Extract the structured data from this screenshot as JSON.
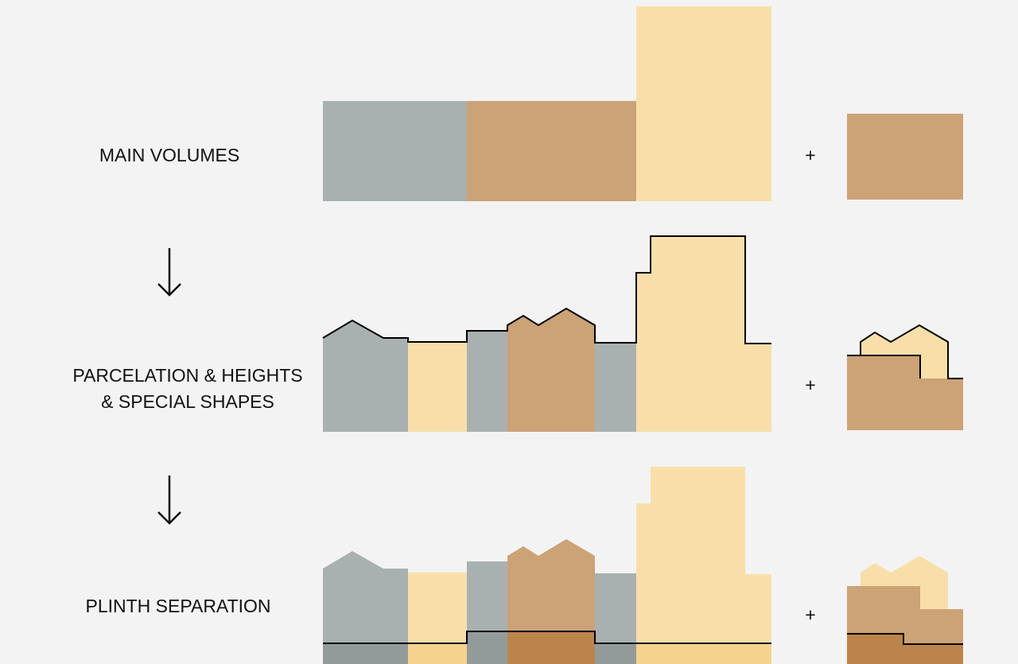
{
  "steps": [
    {
      "label": [
        "MAIN VOLUMES"
      ],
      "plus": "+"
    },
    {
      "label": [
        "PARCELATION & HEIGHTS",
        "& SPECIAL SHAPES"
      ],
      "plus": "+"
    },
    {
      "label": [
        "PLINTH SEPARATION"
      ],
      "plus": "+"
    }
  ]
}
